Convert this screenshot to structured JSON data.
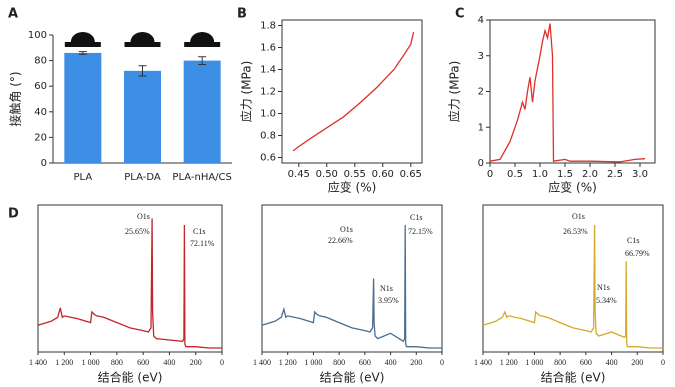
{
  "chart_data": [
    {
      "type": "bar",
      "label": "A",
      "ylabel": "接触角 (°)",
      "categories": [
        "PLA",
        "PLA-DA",
        "PLA-nHA/CS"
      ],
      "values": [
        86,
        72,
        80
      ],
      "errors": [
        1,
        4,
        3
      ],
      "color": "#3d8fe6",
      "ylim": [
        0,
        100
      ],
      "yticks": [
        0,
        20,
        40,
        60,
        80,
        100
      ]
    },
    {
      "type": "line",
      "label": "B",
      "xlabel": "应变 (%)",
      "ylabel": "应力 (MPa)",
      "color": "#e0302a",
      "x": [
        0.44,
        0.45,
        0.47,
        0.5,
        0.53,
        0.56,
        0.59,
        0.62,
        0.64,
        0.65,
        0.655
      ],
      "values": [
        0.66,
        0.7,
        0.77,
        0.87,
        0.97,
        1.1,
        1.24,
        1.4,
        1.55,
        1.63,
        1.74
      ],
      "xlim": [
        0.42,
        0.67
      ],
      "ylim": [
        0.55,
        1.85
      ],
      "xticks": [
        0.45,
        {
          "value": 0.5,
          "label": "0.50"
        },
        0.55,
        {
          "value": 0.6,
          "label": "0.60"
        },
        0.65
      ],
      "yticks": [
        0.6,
        0.8,
        {
          "value": 1,
          "label": "1.0"
        },
        1.2,
        1.4,
        1.6,
        1.8
      ]
    },
    {
      "type": "line",
      "label": "C",
      "xlabel": "应变 (%)",
      "ylabel": "应力 (MPa)",
      "color": "#e0302a",
      "x": [
        0,
        0.2,
        0.4,
        0.55,
        0.65,
        0.7,
        0.75,
        0.8,
        0.85,
        0.9,
        1.0,
        1.05,
        1.1,
        1.15,
        1.2,
        1.25,
        1.27,
        1.5,
        1.6,
        2.0,
        2.6,
        2.9,
        3.1
      ],
      "values": [
        0.05,
        0.1,
        0.6,
        1.2,
        1.7,
        1.5,
        2.0,
        2.4,
        1.7,
        2.3,
        3.0,
        3.4,
        3.7,
        3.5,
        3.9,
        3.0,
        0.05,
        0.1,
        0.05,
        0.05,
        0.03,
        0.1,
        0.12
      ],
      "xlim": [
        0,
        3.3
      ],
      "ylim": [
        0,
        4
      ],
      "xticks": [
        0,
        0.5,
        {
          "value": 1,
          "label": "1.0"
        },
        1.5,
        {
          "value": 2,
          "label": "2.0"
        },
        2.5,
        {
          "value": 3,
          "label": "3.0"
        }
      ],
      "yticks": [
        0,
        1,
        2,
        3,
        4
      ]
    },
    {
      "type": "spectrum",
      "label": "D",
      "xlabel": "结合能 (eV)",
      "color": "#c0262a",
      "x": [
        1400,
        1300,
        1250,
        1230,
        1215,
        1200,
        1100,
        1000,
        990,
        970,
        950,
        900,
        800,
        700,
        600,
        560,
        540,
        532,
        528,
        520,
        500,
        400,
        300,
        290,
        286,
        282,
        275,
        200,
        100,
        0
      ],
      "values": [
        20,
        23,
        26,
        33,
        26,
        27,
        25,
        22,
        30,
        28,
        27,
        26,
        22,
        18,
        16,
        15,
        18,
        100,
        30,
        12,
        10,
        9,
        8,
        10,
        95,
        6,
        4,
        4,
        3,
        3
      ],
      "xlim": [
        1400,
        0
      ],
      "ylim": [
        0,
        110
      ],
      "xticks": [
        {
          "value": 1400,
          "label": "1 400"
        },
        {
          "value": 1200,
          "label": "1 200"
        },
        {
          "value": 1000,
          "label": "1 000"
        },
        800,
        600,
        400,
        200,
        0
      ],
      "annotations": [
        {
          "name": "O1s",
          "percent": "25.65%"
        },
        {
          "name": "C1s",
          "percent": "72.11%"
        }
      ]
    },
    {
      "type": "spectrum",
      "xlabel": "结合能 (eV)",
      "color": "#4a6e8f",
      "x": [
        1400,
        1300,
        1250,
        1230,
        1215,
        1200,
        1100,
        1000,
        990,
        970,
        950,
        900,
        800,
        700,
        600,
        560,
        540,
        532,
        528,
        520,
        500,
        400,
        300,
        290,
        286,
        282,
        275,
        200,
        100,
        0
      ],
      "values": [
        20,
        23,
        26,
        32,
        26,
        27,
        25,
        22,
        30,
        28,
        27,
        26,
        22,
        18,
        16,
        15,
        18,
        55,
        22,
        12,
        10,
        14,
        8,
        10,
        95,
        6,
        4,
        4,
        3,
        3
      ],
      "xlim": [
        1400,
        0
      ],
      "ylim": [
        0,
        110
      ],
      "xticks": [
        {
          "value": 1400,
          "label": "1 400"
        },
        {
          "value": 1200,
          "label": "1 200"
        },
        {
          "value": 1000,
          "label": "1 000"
        },
        800,
        600,
        400,
        200,
        0
      ],
      "annotations": [
        {
          "name": "O1s",
          "percent": "22.66%"
        },
        {
          "name": "C1s",
          "percent": "72.15%"
        },
        {
          "name": "N1s",
          "percent": "3.95%"
        }
      ]
    },
    {
      "type": "spectrum",
      "xlabel": "结合能 (eV)",
      "color": "#d4aa2a",
      "x": [
        1400,
        1300,
        1250,
        1230,
        1215,
        1200,
        1100,
        1000,
        990,
        970,
        950,
        900,
        800,
        700,
        600,
        560,
        540,
        532,
        528,
        520,
        500,
        400,
        300,
        290,
        286,
        282,
        275,
        200,
        100,
        0
      ],
      "values": [
        20,
        23,
        26,
        30,
        26,
        27,
        25,
        22,
        30,
        28,
        27,
        26,
        22,
        18,
        16,
        15,
        18,
        95,
        30,
        14,
        12,
        15,
        11,
        12,
        68,
        6,
        4,
        4,
        3,
        3
      ],
      "xlim": [
        1400,
        0
      ],
      "ylim": [
        0,
        110
      ],
      "xticks": [
        {
          "value": 1400,
          "label": "1 400"
        },
        {
          "value": 1200,
          "label": "1 200"
        },
        {
          "value": 1000,
          "label": "1 000"
        },
        800,
        600,
        400,
        200,
        0
      ],
      "annotations": [
        {
          "name": "O1s",
          "percent": "26.53%"
        },
        {
          "name": "N1s",
          "percent": "5.34%"
        },
        {
          "name": "C1s",
          "percent": "66.79%"
        }
      ]
    }
  ]
}
